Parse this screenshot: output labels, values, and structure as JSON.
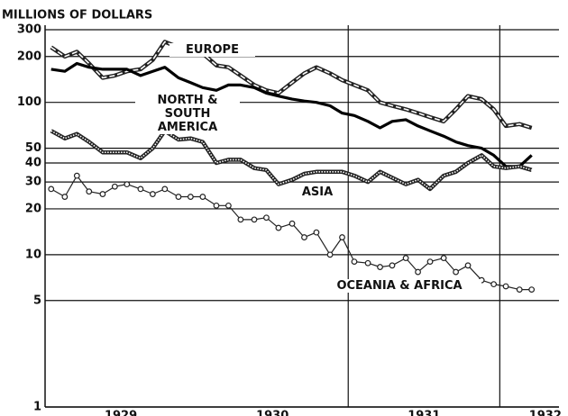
{
  "chart_data": {
    "type": "line",
    "y_label": "MILLIONS OF DOLLARS",
    "log_scale_y": true,
    "ylim": [
      1,
      300
    ],
    "yticks": [
      1,
      5,
      10,
      20,
      30,
      40,
      50,
      100,
      200,
      300
    ],
    "xlim": [
      1929,
      1932.45
    ],
    "xticks": [
      {
        "value": 1929.5,
        "label": "1929"
      },
      {
        "value": 1930.5,
        "label": "1930"
      },
      {
        "value": 1931.5,
        "label": "1931"
      },
      {
        "value": 1932.3,
        "label": "1932"
      }
    ],
    "xgrid": [
      1931,
      1932
    ],
    "grid": true,
    "x": [
      1929.04,
      1929.13,
      1929.21,
      1929.29,
      1929.38,
      1929.46,
      1929.54,
      1929.63,
      1929.71,
      1929.79,
      1929.88,
      1929.96,
      1930.04,
      1930.13,
      1930.21,
      1930.29,
      1930.38,
      1930.46,
      1930.54,
      1930.63,
      1930.71,
      1930.79,
      1930.88,
      1930.96,
      1931.04,
      1931.13,
      1931.21,
      1931.29,
      1931.38,
      1931.46,
      1931.54,
      1931.63,
      1931.71,
      1931.79,
      1931.88,
      1931.96,
      1932.04,
      1932.13,
      1932.21
    ],
    "series": [
      {
        "name": "EUROPE",
        "color": "#222",
        "style": "double-dashed",
        "values": [
          230,
          200,
          215,
          180,
          145,
          150,
          160,
          165,
          190,
          250,
          230,
          215,
          210,
          175,
          170,
          150,
          130,
          120,
          115,
          135,
          155,
          170,
          155,
          140,
          130,
          120,
          100,
          95,
          90,
          85,
          80,
          75,
          90,
          110,
          105,
          90,
          70,
          72,
          68
        ]
      },
      {
        "name": "NORTH & SOUTH AMERICA",
        "color": "#000",
        "style": "solid-heavy",
        "values": [
          165,
          160,
          180,
          170,
          165,
          165,
          165,
          150,
          160,
          170,
          145,
          135,
          125,
          120,
          130,
          130,
          125,
          115,
          110,
          105,
          102,
          100,
          95,
          85,
          82,
          75,
          68,
          75,
          77,
          70,
          65,
          60,
          55,
          52,
          50,
          45,
          38,
          38,
          45
        ]
      },
      {
        "name": "ASIA",
        "color": "#222",
        "style": "double-dotted",
        "values": [
          65,
          58,
          62,
          55,
          47,
          47,
          47,
          43,
          50,
          65,
          57,
          58,
          55,
          40,
          42,
          42,
          37,
          36,
          29,
          31,
          34,
          35,
          35,
          35,
          33,
          30,
          35,
          32,
          29,
          31,
          27,
          33,
          35,
          40,
          45,
          38,
          37,
          38,
          36
        ]
      },
      {
        "name": "OCEANIA & AFRICA",
        "color": "#222",
        "style": "circles",
        "values": [
          27,
          24,
          33,
          26,
          25,
          28,
          29,
          27,
          25,
          27,
          24,
          24,
          24,
          21,
          21,
          17,
          17,
          17.5,
          15,
          16,
          13,
          14,
          10,
          13,
          9,
          8.8,
          8.3,
          8.5,
          9.5,
          7.7,
          9,
          9.5,
          7.7,
          8.5,
          6.8,
          6.4,
          6.2,
          5.9,
          5.9
        ]
      }
    ]
  }
}
